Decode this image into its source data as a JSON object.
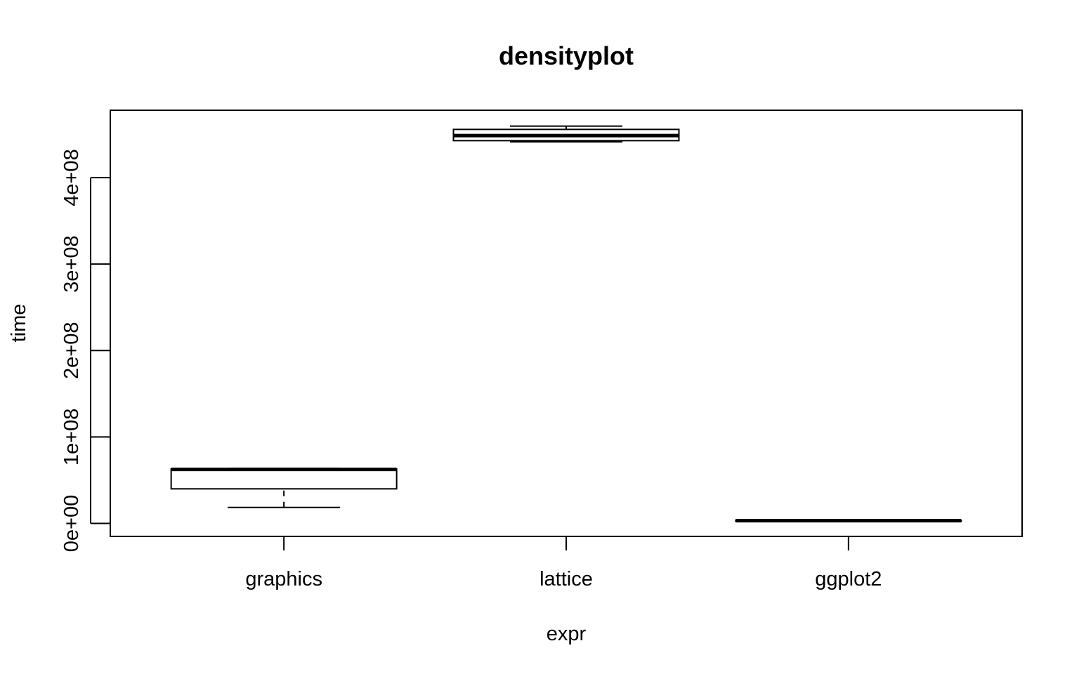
{
  "chart_data": {
    "type": "boxplot",
    "title": "densityplot",
    "xlabel": "expr",
    "ylabel": "time",
    "categories": [
      "graphics",
      "lattice",
      "ggplot2"
    ],
    "y_ticks": [
      0,
      100000000,
      200000000,
      300000000,
      400000000
    ],
    "y_tick_labels": [
      "0e+00",
      "1e+08",
      "2e+08",
      "3e+08",
      "4e+08"
    ],
    "ylim": [
      -15000000,
      478000000
    ],
    "grid": false,
    "legend": "none",
    "boxes": [
      {
        "category": "graphics",
        "min": 18500000,
        "q1": 40000000,
        "median": 62500000,
        "q3": 63000000,
        "max": 63800000
      },
      {
        "category": "lattice",
        "min": 441500000,
        "q1": 442800000,
        "median": 448700000,
        "q3": 455800000,
        "max": 459600000
      },
      {
        "category": "ggplot2",
        "min": 2800000,
        "q1": 2900000,
        "median": 3200000,
        "q3": 3500000,
        "max": 3700000
      }
    ]
  }
}
